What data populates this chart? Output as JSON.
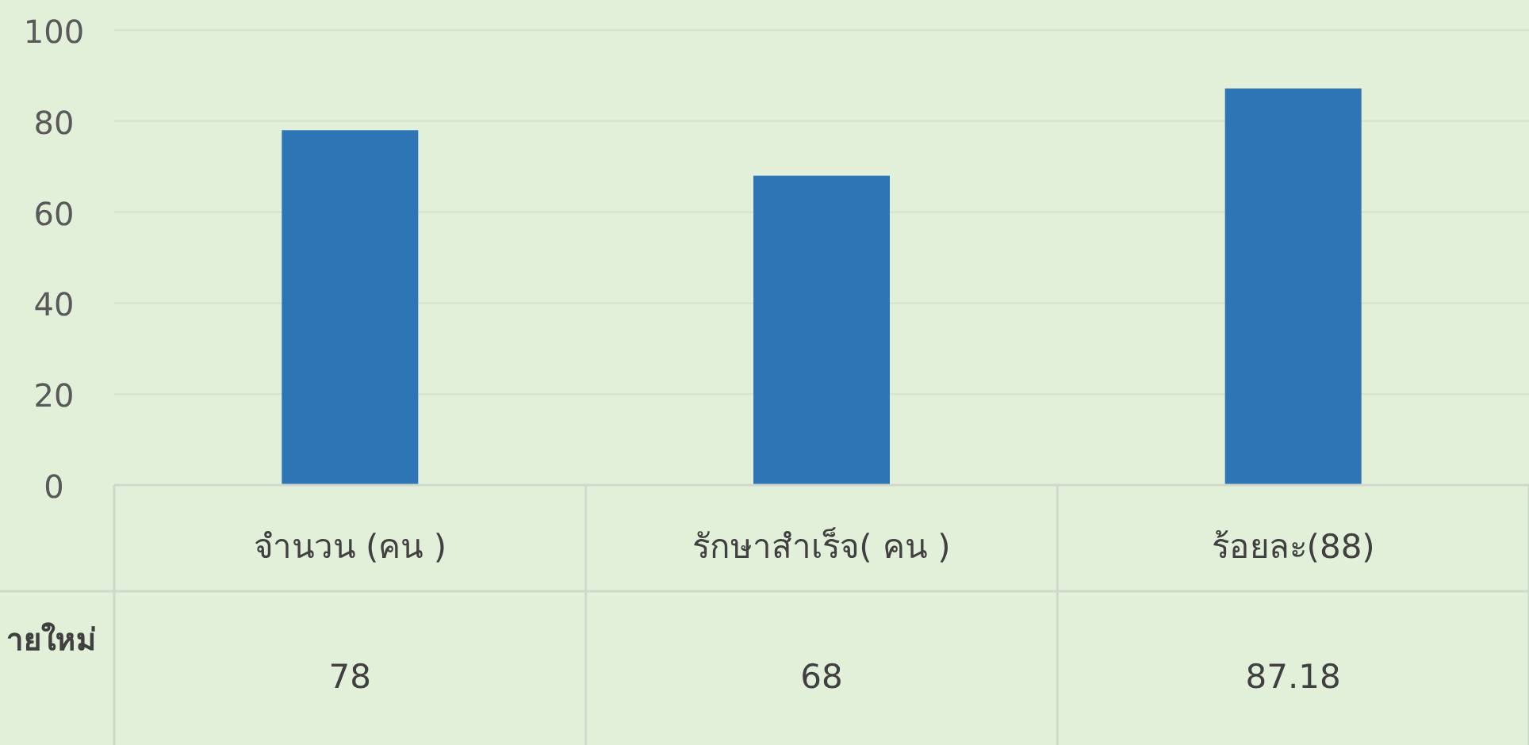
{
  "chart_data": {
    "type": "bar",
    "categories": [
      "จำนวน (คน )",
      "รักษาสำเร็จ( คน )",
      "ร้อยละ(88)"
    ],
    "series": [
      {
        "name": "ายใหม่",
        "color": "#2e75b6",
        "values": [
          78,
          68,
          87.18
        ]
      }
    ],
    "ylim": [
      0,
      100
    ],
    "yticks": [
      0,
      20,
      40,
      60,
      80,
      100
    ],
    "grid": "y",
    "data_labels": true
  }
}
